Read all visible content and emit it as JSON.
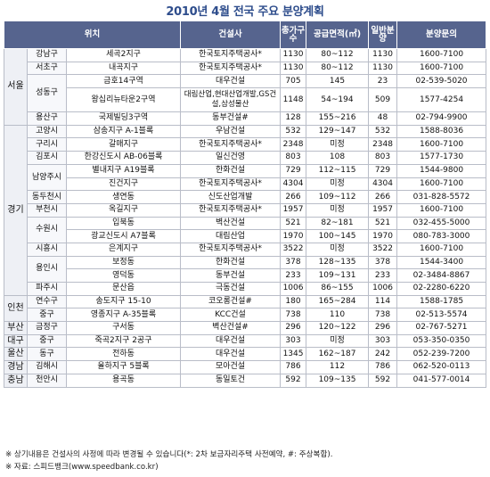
{
  "title": "2010년 4월 전국 주요 분양계획",
  "headers": {
    "location": "위치",
    "developer": "건설사",
    "total_units": "총가구수",
    "area": "공급면적(㎡)",
    "general_sale": "일반분양",
    "inquiry": "분양문의"
  },
  "rows": [
    {
      "region": "서울",
      "city": "강남구",
      "site": "세곡2지구",
      "developer": "한국토지주택공사*",
      "total": "1130",
      "area": "80~112",
      "general": "1130",
      "phone": "1600-7100"
    },
    {
      "region": "",
      "city": "서초구",
      "site": "내곡지구",
      "developer": "한국토지주택공사*",
      "total": "1130",
      "area": "80~112",
      "general": "1130",
      "phone": "1600-7100"
    },
    {
      "region": "",
      "city": "성동구",
      "site": "금호14구역",
      "developer": "대우건설",
      "total": "705",
      "area": "145",
      "general": "23",
      "phone": "02-539-5020"
    },
    {
      "region": "",
      "city": "",
      "site": "왕십리뉴타운2구역",
      "developer": "대림산업,현대산업개발,GS건설,삼성물산",
      "total": "1148",
      "area": "54~194",
      "general": "509",
      "phone": "1577-4254"
    },
    {
      "region": "",
      "city": "용산구",
      "site": "국제빌딩3구역",
      "developer": "동부건설#",
      "total": "128",
      "area": "155~216",
      "general": "48",
      "phone": "02-794-9900"
    },
    {
      "region": "경기",
      "city": "고양시",
      "site": "삼송지구 A-1블록",
      "developer": "우남건설",
      "total": "532",
      "area": "129~147",
      "general": "532",
      "phone": "1588-8036"
    },
    {
      "region": "",
      "city": "구리시",
      "site": "갈매지구",
      "developer": "한국토지주택공사*",
      "total": "2348",
      "area": "미정",
      "general": "2348",
      "phone": "1600-7100"
    },
    {
      "region": "",
      "city": "김포시",
      "site": "한강신도시 AB-06블록",
      "developer": "일신건영",
      "total": "803",
      "area": "108",
      "general": "803",
      "phone": "1577-1730"
    },
    {
      "region": "",
      "city": "남양주시",
      "site": "별내지구 A19블록",
      "developer": "한화건설",
      "total": "729",
      "area": "112~115",
      "general": "729",
      "phone": "1544-9800"
    },
    {
      "region": "",
      "city": "",
      "site": "진건지구",
      "developer": "한국토지주택공사*",
      "total": "4304",
      "area": "미정",
      "general": "4304",
      "phone": "1600-7100"
    },
    {
      "region": "",
      "city": "동두천시",
      "site": "생연동",
      "developer": "신도산업개발",
      "total": "266",
      "area": "109~112",
      "general": "266",
      "phone": "031-828-5572"
    },
    {
      "region": "",
      "city": "부천시",
      "site": "옥길지구",
      "developer": "한국토지주택공사*",
      "total": "1957",
      "area": "미정",
      "general": "1957",
      "phone": "1600-7100"
    },
    {
      "region": "",
      "city": "수원시",
      "site": "입북동",
      "developer": "벽산건설",
      "total": "521",
      "area": "82~181",
      "general": "521",
      "phone": "032-455-5000"
    },
    {
      "region": "",
      "city": "",
      "site": "광교신도시 A7블록",
      "developer": "대림산업",
      "total": "1970",
      "area": "100~145",
      "general": "1970",
      "phone": "080-783-3000"
    },
    {
      "region": "",
      "city": "시흥시",
      "site": "은계지구",
      "developer": "한국토지주택공사*",
      "total": "3522",
      "area": "미정",
      "general": "3522",
      "phone": "1600-7100"
    },
    {
      "region": "",
      "city": "용인시",
      "site": "보정동",
      "developer": "한화건설",
      "total": "378",
      "area": "128~135",
      "general": "378",
      "phone": "1544-3400"
    },
    {
      "region": "",
      "city": "",
      "site": "영덕동",
      "developer": "동부건설",
      "total": "233",
      "area": "109~131",
      "general": "233",
      "phone": "02-3484-8867"
    },
    {
      "region": "",
      "city": "파주시",
      "site": "문산읍",
      "developer": "극동건설",
      "total": "1006",
      "area": "86~155",
      "general": "1006",
      "phone": "02-2280-6220"
    },
    {
      "region": "인천",
      "city": "연수구",
      "site": "송도지구 15-10",
      "developer": "코오롱건설#",
      "total": "180",
      "area": "165~284",
      "general": "114",
      "phone": "1588-1785"
    },
    {
      "region": "",
      "city": "중구",
      "site": "영종지구 A-35블록",
      "developer": "KCC건설",
      "total": "738",
      "area": "110",
      "general": "738",
      "phone": "02-513-5574"
    },
    {
      "region": "부산",
      "city": "금정구",
      "site": "구서동",
      "developer": "벽산건설#",
      "total": "296",
      "area": "120~122",
      "general": "296",
      "phone": "02-767-5271"
    },
    {
      "region": "대구",
      "city": "중구",
      "site": "죽곡2지구 2공구",
      "developer": "대우건설",
      "total": "303",
      "area": "미정",
      "general": "303",
      "phone": "053-350-0350"
    },
    {
      "region": "울산",
      "city": "동구",
      "site": "전하동",
      "developer": "대우건설",
      "total": "1345",
      "area": "162~187",
      "general": "242",
      "phone": "052-239-7200"
    },
    {
      "region": "경남",
      "city": "김해시",
      "site": "율하지구 5블록",
      "developer": "모아건설",
      "total": "786",
      "area": "112",
      "general": "786",
      "phone": "062-520-0113"
    },
    {
      "region": "충남",
      "city": "천안시",
      "site": "용곡동",
      "developer": "동일토건",
      "total": "592",
      "area": "109~135",
      "general": "592",
      "phone": "041-577-0014"
    }
  ],
  "notes": {
    "line1": "※ 상기내용은 건설사의 사정에 따라 변경될 수 있습니다(*: 2차 보금자리주택 사전예약, #: 주상복합).",
    "line2": "※ 자료: 스피드뱅크(www.speedbank.co.kr)"
  }
}
